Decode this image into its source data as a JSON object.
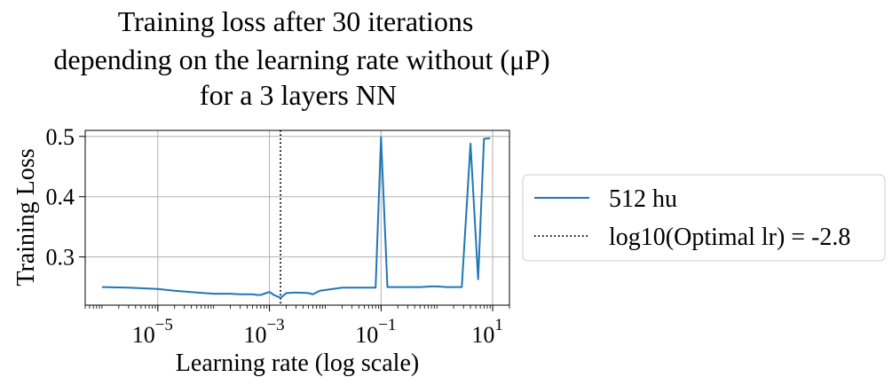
{
  "chart_data": {
    "type": "line",
    "title_lines": [
      "Training loss after 30 iterations",
      "depending on the learning rate without (μP)",
      "for a 3 layers NN"
    ],
    "xlabel": "Learning rate (log scale)",
    "ylabel": "Training Loss",
    "xscale": "log",
    "xlim": [
      5e-07,
      20
    ],
    "ylim": [
      0.22,
      0.51
    ],
    "grid": true,
    "legend_position": "right, outside plot",
    "x_ticks": [
      {
        "value": 1e-05,
        "base": "10",
        "exp": "−5"
      },
      {
        "value": 0.001,
        "base": "10",
        "exp": "−3"
      },
      {
        "value": 0.1,
        "base": "10",
        "exp": "−1"
      },
      {
        "value": 10,
        "base": "10",
        "exp": "1"
      }
    ],
    "y_ticks": [
      {
        "value": 0.3,
        "label": "0.3"
      },
      {
        "value": 0.4,
        "label": "0.4"
      },
      {
        "value": 0.5,
        "label": "0.5"
      }
    ],
    "series": [
      {
        "name": "512 hu",
        "color": "#1f77b4",
        "style": "solid",
        "x": [
          1e-06,
          3e-06,
          1e-05,
          2e-05,
          5e-05,
          0.0001,
          0.0002,
          0.0003,
          0.0005,
          0.0006,
          0.0007,
          0.001,
          0.0012,
          0.0016,
          0.002,
          0.003,
          0.005,
          0.006,
          0.008,
          0.012,
          0.02,
          0.04,
          0.08,
          0.1,
          0.13,
          0.3,
          0.5,
          0.8,
          1,
          1.5,
          2,
          2.8,
          4,
          5.5,
          7,
          9
        ],
        "y": [
          0.25,
          0.249,
          0.247,
          0.244,
          0.241,
          0.239,
          0.239,
          0.238,
          0.238,
          0.237,
          0.237,
          0.242,
          0.237,
          0.232,
          0.24,
          0.241,
          0.24,
          0.238,
          0.244,
          0.246,
          0.249,
          0.249,
          0.249,
          0.499,
          0.25,
          0.25,
          0.25,
          0.251,
          0.251,
          0.25,
          0.25,
          0.25,
          0.488,
          0.263,
          0.496,
          0.497
        ]
      },
      {
        "name": "log10(Optimal lr) = -2.8",
        "color": "#000000",
        "style": "dotted",
        "vline_x": 0.00158
      }
    ]
  }
}
